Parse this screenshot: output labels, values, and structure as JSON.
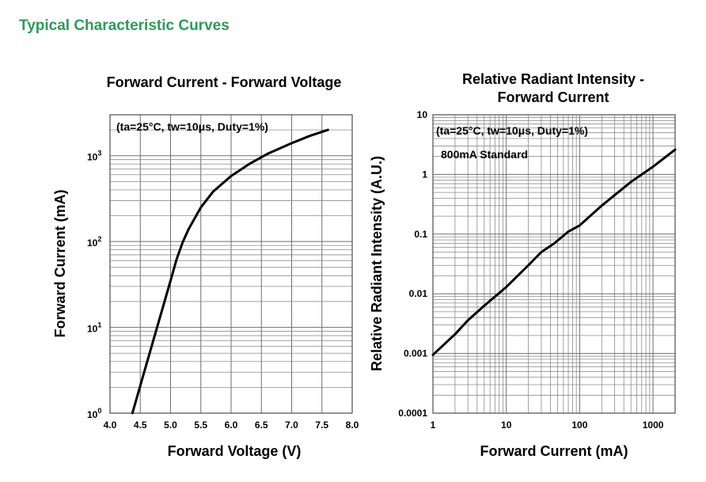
{
  "section_title": "Typical Characteristic Curves",
  "chart_data": [
    {
      "type": "line",
      "title": "Forward Current - Forward Voltage",
      "xlabel": "Forward Voltage (V)",
      "ylabel": "Forward Current (mA)",
      "xscale": "linear",
      "yscale": "log",
      "xlim": [
        4.0,
        8.0
      ],
      "ylim": [
        1,
        3000
      ],
      "x_ticks": [
        "4.0",
        "4.5",
        "5.0",
        "5.5",
        "6.0",
        "6.5",
        "7.0",
        "7.5",
        "8.0"
      ],
      "y_ticks": [
        {
          "value": 1,
          "base": "10",
          "exp": "0"
        },
        {
          "value": 10,
          "base": "10",
          "exp": "1"
        },
        {
          "value": 100,
          "base": "10",
          "exp": "2"
        },
        {
          "value": 1000,
          "base": "10",
          "exp": "3"
        }
      ],
      "grid": true,
      "annotation": "(ta=25°C, tw=10μs, Duty=1%)",
      "series": [
        {
          "x": [
            4.37,
            4.5,
            4.7,
            4.9,
            5.0,
            5.1,
            5.2,
            5.3,
            5.5,
            5.7,
            6.0,
            6.3,
            6.6,
            7.0,
            7.3,
            7.6
          ],
          "y": [
            1.0,
            2.1,
            6.5,
            20,
            35,
            62,
            98,
            140,
            250,
            380,
            580,
            800,
            1050,
            1400,
            1700,
            2000
          ]
        }
      ]
    },
    {
      "type": "line",
      "title": "Relative Radiant Intensity - Forward Current",
      "title_lines": [
        "Relative Radiant Intensity -",
        "Forward Current"
      ],
      "xlabel": "Forward Current (mA)",
      "ylabel": "Relative Radiant Intensity (A.U.)",
      "xscale": "log",
      "yscale": "log",
      "xlim": [
        1,
        2000
      ],
      "ylim": [
        0.0001,
        10
      ],
      "x_ticks": [
        {
          "value": 1,
          "label": "1"
        },
        {
          "value": 10,
          "label": "10"
        },
        {
          "value": 100,
          "label": "100"
        },
        {
          "value": 1000,
          "label": "1000"
        }
      ],
      "y_ticks": [
        {
          "value": 10,
          "label": "10"
        },
        {
          "value": 1,
          "label": "1"
        },
        {
          "value": 0.1,
          "label": "0.1"
        },
        {
          "value": 0.01,
          "label": "0.01"
        },
        {
          "value": 0.001,
          "label": "0.001"
        },
        {
          "value": 0.0001,
          "label": "0.0001"
        }
      ],
      "grid": true,
      "annotations": [
        "(ta=25°C, tw=10μs, Duty=1%)",
        "800mA Standard"
      ],
      "series": [
        {
          "x": [
            1,
            2,
            3,
            5,
            10,
            20,
            30,
            45,
            70,
            100,
            200,
            500,
            1000,
            2000
          ],
          "y": [
            0.00095,
            0.0021,
            0.0036,
            0.0063,
            0.013,
            0.03,
            0.05,
            0.07,
            0.11,
            0.14,
            0.3,
            0.75,
            1.35,
            2.6
          ]
        }
      ]
    }
  ]
}
